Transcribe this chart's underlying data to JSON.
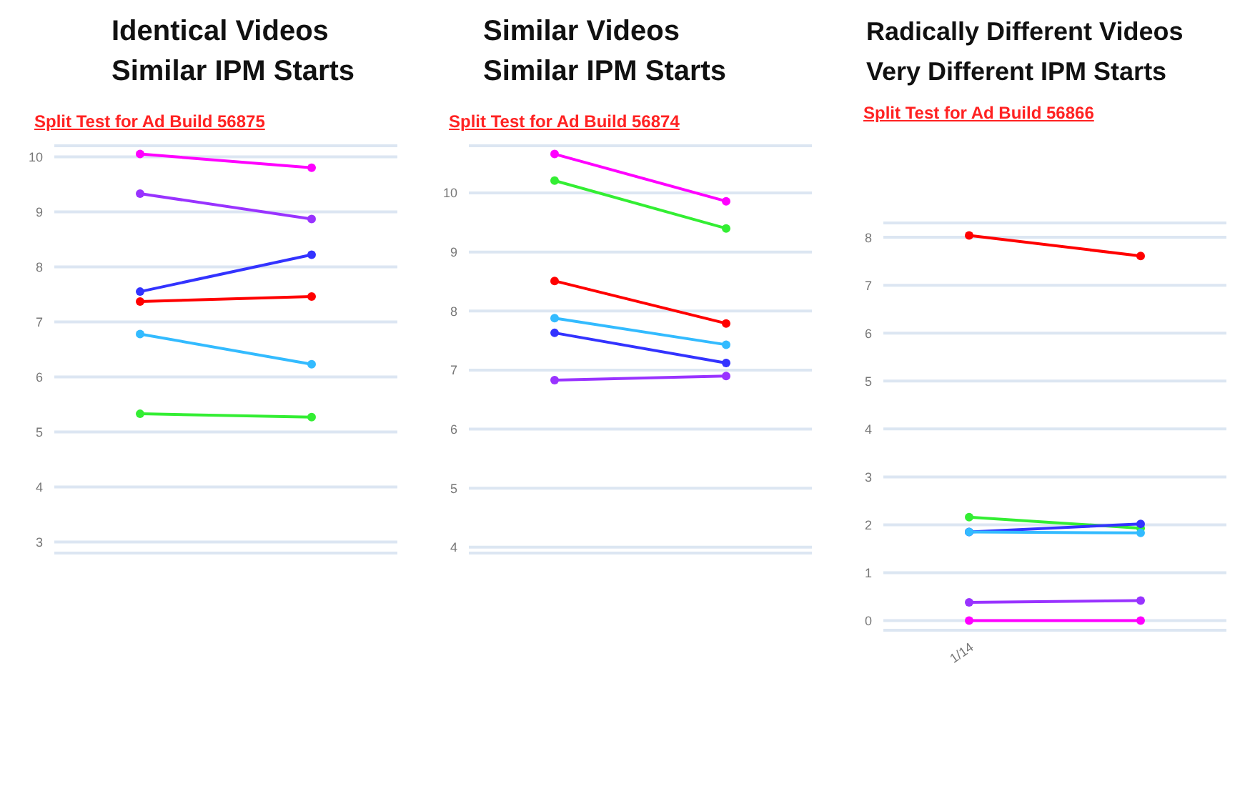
{
  "chart_data": [
    {
      "type": "line",
      "title": "Identical Videos\nSimilar IPM Starts",
      "subtitle": "Split Test for Ad Build 56875",
      "categories": [
        null,
        null
      ],
      "ylim": [
        2.8,
        10.2
      ],
      "yticks": [
        3,
        4,
        5,
        6,
        7,
        8,
        9,
        10
      ],
      "grid": "y",
      "legend": false,
      "marker": "circle",
      "tick_labels": "y",
      "series": [
        {
          "color": "#ff00ff",
          "values": [
            10.05,
            9.8
          ]
        },
        {
          "color": "#9933ff",
          "values": [
            9.33,
            8.87
          ]
        },
        {
          "color": "#3333ff",
          "values": [
            7.55,
            8.22
          ]
        },
        {
          "color": "#ff0000",
          "values": [
            7.37,
            7.46
          ]
        },
        {
          "color": "#33bbff",
          "values": [
            6.78,
            6.23
          ]
        },
        {
          "color": "#33ee33",
          "values": [
            5.33,
            5.27
          ]
        }
      ]
    },
    {
      "type": "line",
      "title": "Similar Videos\nSimilar IPM Starts",
      "subtitle": "Split Test for Ad Build 56874",
      "categories": [
        null,
        null
      ],
      "ylim": [
        3.9,
        10.8
      ],
      "yticks": [
        4,
        5,
        6,
        7,
        8,
        9,
        10
      ],
      "grid": "y",
      "legend": false,
      "marker": "circle",
      "tick_labels": "y",
      "series": [
        {
          "color": "#ff00ff",
          "values": [
            10.66,
            9.86
          ]
        },
        {
          "color": "#33ee33",
          "values": [
            10.21,
            9.4
          ]
        },
        {
          "color": "#ff0000",
          "values": [
            8.51,
            7.79
          ]
        },
        {
          "color": "#33bbff",
          "values": [
            7.88,
            7.43
          ]
        },
        {
          "color": "#3333ff",
          "values": [
            7.63,
            7.12
          ]
        },
        {
          "color": "#9933ff",
          "values": [
            6.83,
            6.9
          ]
        }
      ]
    },
    {
      "type": "line",
      "title": "Radically Different Videos\nVery Different IPM Starts",
      "subtitle": "Split Test for Ad Build 56866",
      "categories": [
        "1/14",
        null
      ],
      "ylim": [
        -0.2,
        8.3
      ],
      "yticks": [
        0,
        1,
        2,
        3,
        4,
        5,
        6,
        7,
        8
      ],
      "grid": "y",
      "legend": false,
      "marker": "circle",
      "series": [
        {
          "color": "#ff0000",
          "values": [
            8.04,
            7.61
          ]
        },
        {
          "color": "#33ee33",
          "values": [
            2.16,
            1.93
          ]
        },
        {
          "color": "#3333ff",
          "values": [
            1.85,
            2.02
          ]
        },
        {
          "color": "#33bbff",
          "values": [
            1.85,
            1.83
          ]
        },
        {
          "color": "#9933ff",
          "values": [
            0.38,
            0.42
          ]
        },
        {
          "color": "#ff00ff",
          "values": [
            0,
            0
          ]
        }
      ]
    }
  ]
}
